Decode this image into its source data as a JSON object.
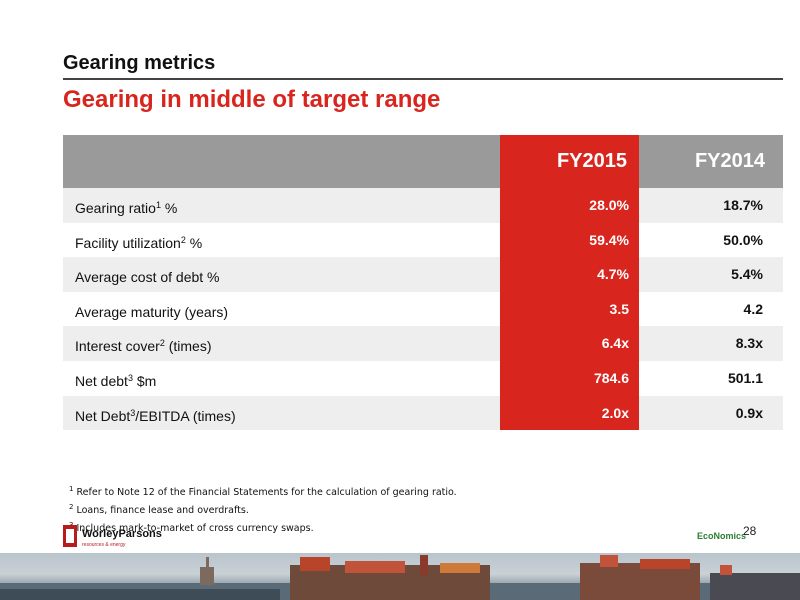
{
  "header": {
    "title": "Gearing metrics",
    "subtitle": "Gearing in middle of target range"
  },
  "table": {
    "columns": [
      "FY2015",
      "FY2014"
    ],
    "rows": [
      {
        "label": "Gearing ratio",
        "sup": "1",
        "suffix": " %",
        "fy2015": "28.0%",
        "fy2014": "18.7%"
      },
      {
        "label": "Facility utilization",
        "sup": "2",
        "suffix": " %",
        "fy2015": "59.4%",
        "fy2014": "50.0%"
      },
      {
        "label": "Average cost of debt %",
        "sup": "",
        "suffix": "",
        "fy2015": "4.7%",
        "fy2014": "5.4%"
      },
      {
        "label": "Average maturity (years)",
        "sup": "",
        "suffix": "",
        "fy2015": "3.5",
        "fy2014": "4.2"
      },
      {
        "label": "Interest cover",
        "sup": "2",
        "suffix": " (times)",
        "fy2015": "6.4x",
        "fy2014": "8.3x"
      },
      {
        "label": "Net debt",
        "sup": "3",
        "suffix": " $m",
        "fy2015": "784.6",
        "fy2014": "501.1"
      },
      {
        "label": "Net Debt",
        "sup": "3",
        "suffix": "/EBITDA (times)",
        "fy2015": "2.0x",
        "fy2014": "0.9x"
      }
    ]
  },
  "footnotes": [
    {
      "num": "1",
      "text": " Refer to Note 12 of the Financial Statements for the calculation of gearing ratio."
    },
    {
      "num": "2",
      "text": " Loans, finance lease and overdrafts."
    },
    {
      "num": "3",
      "text": " Includes mark-to-market of cross  currency swaps."
    }
  ],
  "footer": {
    "logo_name": "WorleyParsons",
    "logo_tagline": "resources & energy",
    "economics": "EcoNomics",
    "page_number": "28"
  },
  "colors": {
    "accent_red": "#d8261e",
    "header_gray": "#9a9a9a",
    "row_shade": "#eeeeee"
  }
}
